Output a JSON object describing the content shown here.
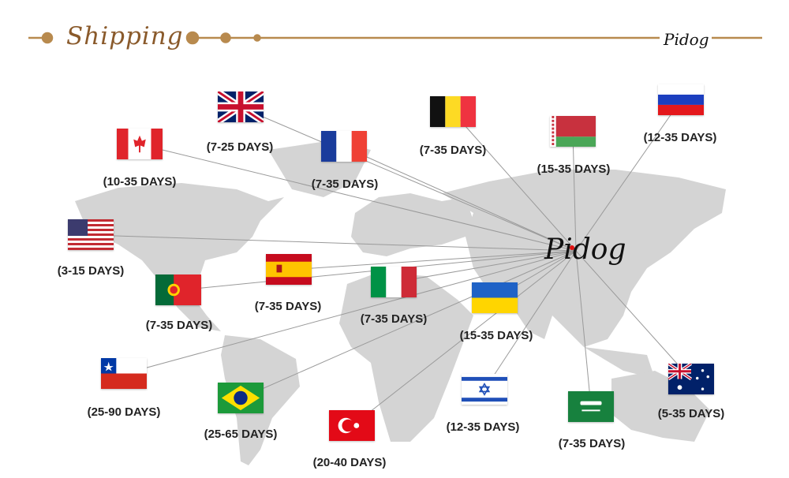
{
  "header": {
    "title": "Shipping",
    "brand": "Pidog",
    "accent_color": "#b88a4e"
  },
  "hub": {
    "brand": "Pidog"
  },
  "colors": {
    "land": "#d4d4d4",
    "route_line": "#9a9a9a",
    "label": "#222222"
  },
  "destinations": [
    {
      "flag": "canada-flag",
      "time": "(10-35 DAYS)"
    },
    {
      "flag": "uk-flag",
      "time": "(7-25 DAYS)"
    },
    {
      "flag": "france-flag",
      "time": "(7-35 DAYS)"
    },
    {
      "flag": "belgium-flag",
      "time": "(7-35 DAYS)"
    },
    {
      "flag": "belarus-flag",
      "time": "(15-35 DAYS)"
    },
    {
      "flag": "russia-flag",
      "time": "(12-35 DAYS)"
    },
    {
      "flag": "usa-flag",
      "time": "(3-15 DAYS)"
    },
    {
      "flag": "spain-flag",
      "time": "(7-35 DAYS)"
    },
    {
      "flag": "portugal-flag",
      "time": "(7-35 DAYS)"
    },
    {
      "flag": "italy-flag",
      "time": "(7-35 DAYS)"
    },
    {
      "flag": "ukraine-flag",
      "time": "(15-35 DAYS)"
    },
    {
      "flag": "chile-flag",
      "time": "(25-90 DAYS)"
    },
    {
      "flag": "brazil-flag",
      "time": "(25-65 DAYS)"
    },
    {
      "flag": "turkey-flag",
      "time": "(20-40 DAYS)"
    },
    {
      "flag": "israel-flag",
      "time": "(12-35 DAYS)"
    },
    {
      "flag": "saudi-arabia-flag",
      "time": "(7-35 DAYS)"
    },
    {
      "flag": "australia-flag",
      "time": "(5-35 DAYS)"
    }
  ]
}
